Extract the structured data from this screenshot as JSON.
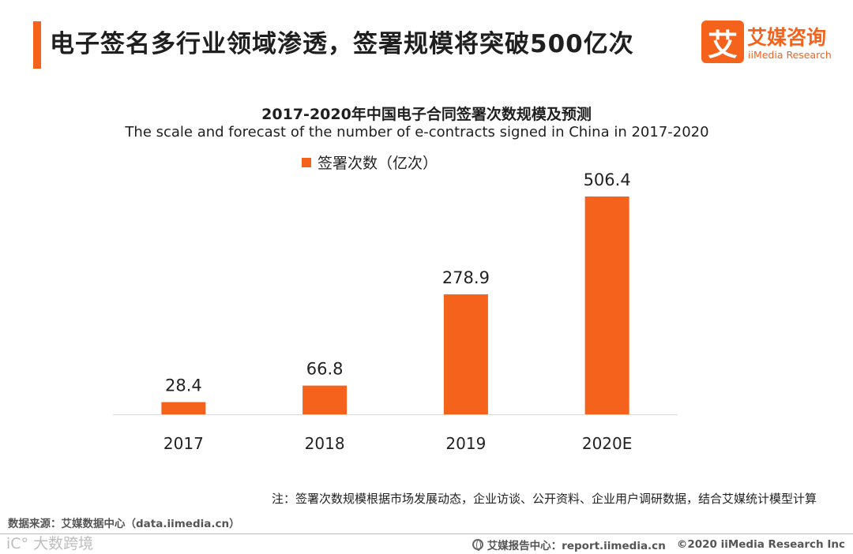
{
  "header": {
    "title": "电子签名多行业领域渗透，签署规模将突破500亿次",
    "logo_mark": "艾",
    "logo_cn": "艾媒咨询",
    "logo_en": "iiMedia Research"
  },
  "chart_data": {
    "type": "bar",
    "title": "2017-2020年中国电子合同签署次数规模及预测",
    "subtitle": "The scale and forecast of the number of e-contracts signed in China in 2017-2020",
    "categories": [
      "2017",
      "2018",
      "2019",
      "2020E"
    ],
    "series": [
      {
        "name": "签署次数（亿次）",
        "values": [
          28.4,
          66.8,
          278.9,
          506.4
        ]
      }
    ],
    "data_labels": [
      "28.4",
      "66.8",
      "278.9",
      "506.4"
    ],
    "xlabel": "",
    "ylabel": "",
    "ylim": [
      0,
      506.4
    ],
    "grid": false,
    "legend_position": "top-left",
    "bar_color": "#f4621c"
  },
  "footer": {
    "note": "注：签署次数规模根据市场发展动态，企业访谈、公开资料、企业用户调研数据，结合艾媒统计模型计算",
    "source": "数据来源：艾媒数据中心（data.iimedia.cn）",
    "watermark": "iC° 大数跨境",
    "report_site": "艾媒报告中心：report.iimedia.cn",
    "copyright": "©2020  iiMedia Research  Inc"
  }
}
